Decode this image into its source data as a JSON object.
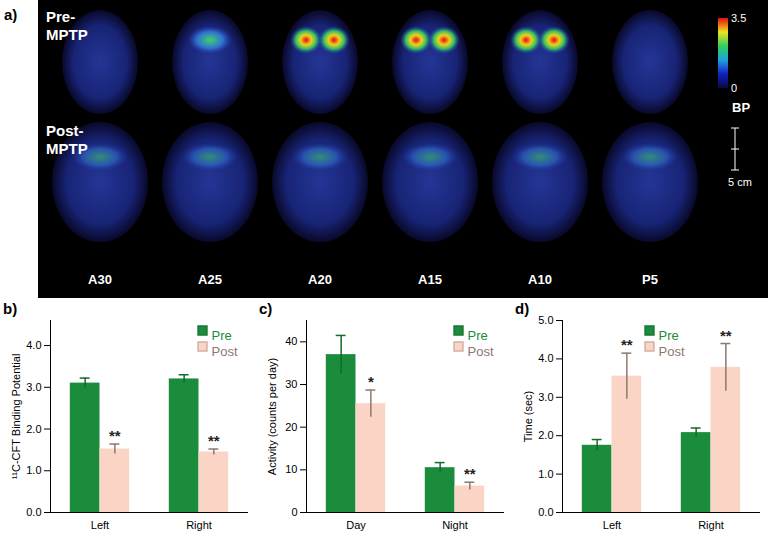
{
  "chart_data": [
    {
      "type": "image",
      "title": "a)",
      "row_labels": [
        "Pre-MPTP",
        "Post-MPTP"
      ],
      "column_labels": [
        "A30",
        "A25",
        "A20",
        "A15",
        "A10",
        "P5"
      ],
      "colorbar": {
        "label": "BP",
        "range": [
          0,
          3.5
        ],
        "ticks": [
          0,
          3.5
        ]
      },
      "scale_bar": "5 cm"
    },
    {
      "type": "bar",
      "title": "b)",
      "ylabel": "¹¹C-CFT Binding Potential",
      "categories": [
        "Left",
        "Right"
      ],
      "series": [
        {
          "name": "Pre",
          "color": "#1a8c3c",
          "values": [
            3.1,
            3.2
          ],
          "errors": [
            0.12,
            0.1
          ]
        },
        {
          "name": "Post",
          "color": "#fad4c4",
          "values": [
            1.52,
            1.45
          ],
          "errors": [
            0.12,
            0.07
          ],
          "annotations": [
            "**",
            "**"
          ]
        }
      ],
      "ylim": [
        0,
        4.6
      ],
      "yticks": [
        0,
        1,
        2,
        3,
        4
      ],
      "legend": "upper right"
    },
    {
      "type": "bar",
      "title": "c)",
      "ylabel": "Activity (counts per day)",
      "categories": [
        "Day",
        "Night"
      ],
      "series": [
        {
          "name": "Pre",
          "color": "#1a8c3c",
          "values": [
            37,
            10.5
          ],
          "errors": [
            4.5,
            1.2
          ]
        },
        {
          "name": "Post",
          "color": "#fad4c4",
          "values": [
            25.5,
            6.2
          ],
          "errors": [
            3.2,
            0.9
          ],
          "annotations": [
            "*",
            "**"
          ]
        }
      ],
      "ylim": [
        0,
        45
      ],
      "yticks": [
        0,
        10,
        20,
        30,
        40
      ],
      "legend": "upper right"
    },
    {
      "type": "bar",
      "title": "d)",
      "ylabel": "Time (sec)",
      "categories": [
        "Left",
        "Right"
      ],
      "series": [
        {
          "name": "Pre",
          "color": "#1a8c3c",
          "values": [
            1.75,
            2.08
          ],
          "errors": [
            0.15,
            0.12
          ]
        },
        {
          "name": "Post",
          "color": "#fad4c4",
          "values": [
            3.55,
            3.78
          ],
          "errors": [
            0.6,
            0.62
          ],
          "annotations": [
            "**",
            "**"
          ]
        }
      ],
      "ylim": [
        0,
        5
      ],
      "yticks": [
        0,
        1,
        2,
        3,
        4,
        5
      ],
      "legend": "upper center"
    }
  ]
}
